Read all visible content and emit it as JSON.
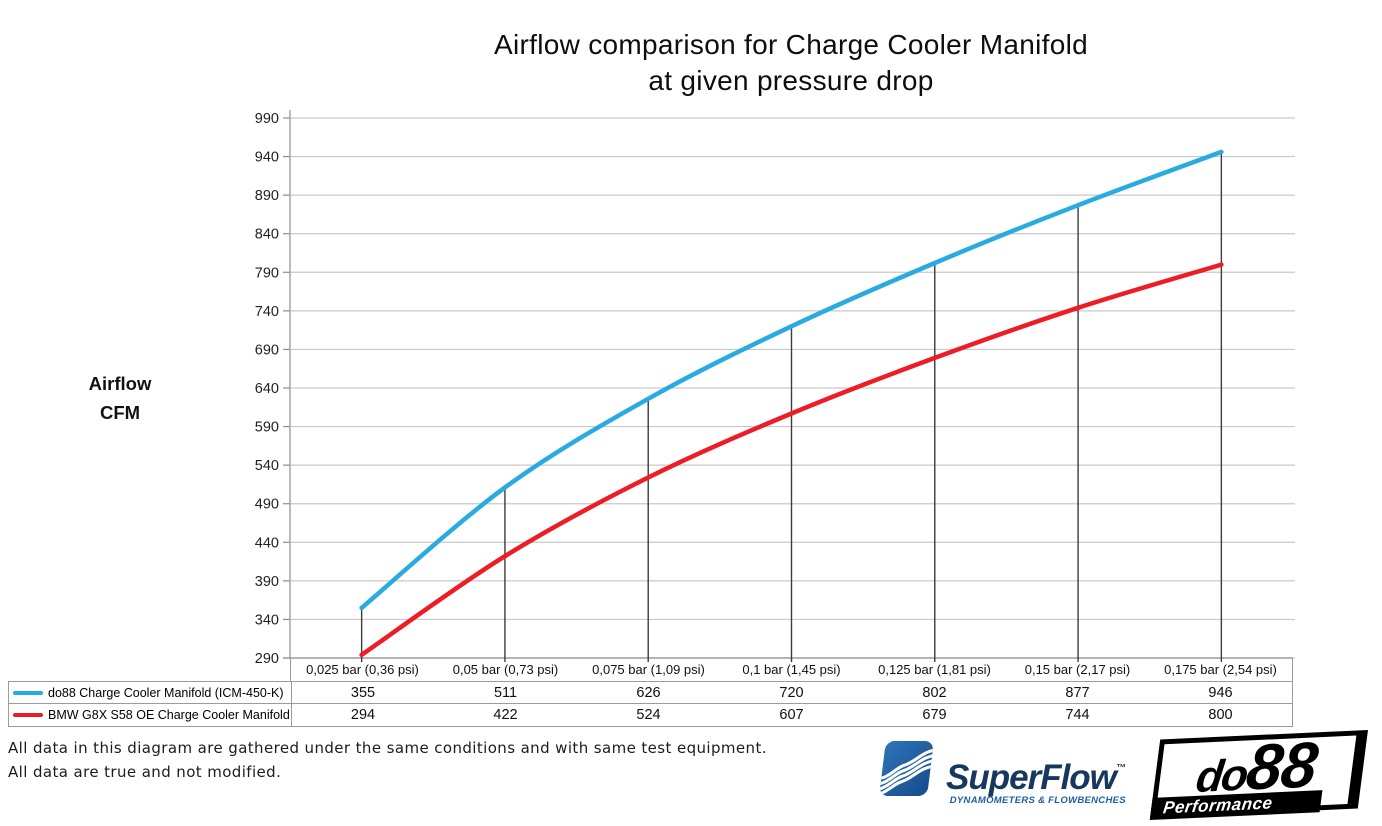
{
  "title": {
    "line1": "Airflow comparison for Charge Cooler Manifold",
    "line2": "at given pressure drop"
  },
  "chart_data": {
    "type": "line",
    "title": "Airflow comparison for Charge Cooler Manifold at given pressure drop",
    "categories": [
      "0,025 bar (0,36 psi)",
      "0,05 bar (0,73 psi)",
      "0,075 bar (1,09 psi)",
      "0,1 bar (1,45 psi)",
      "0,125 bar (1,81 psi)",
      "0,15 bar (2,17 psi)",
      "0,175 bar (2,54 psi)"
    ],
    "series": [
      {
        "name": "do88 Charge Cooler Manifold (ICM-450-K)",
        "color": "#29ABE2",
        "values": [
          355,
          511,
          626,
          720,
          802,
          877,
          946
        ]
      },
      {
        "name": "BMW G8X S58 OE Charge Cooler Manifold",
        "color": "#EE1C25",
        "values": [
          294,
          422,
          524,
          607,
          679,
          744,
          800
        ]
      }
    ],
    "xlabel": "",
    "ylabel": "Airflow CFM",
    "ylabel_lines": [
      "Airflow",
      "CFM"
    ],
    "yticks": [
      290,
      340,
      390,
      440,
      490,
      540,
      590,
      640,
      690,
      740,
      790,
      840,
      890,
      940,
      990
    ],
    "ylim": [
      290,
      1005
    ],
    "grid": true,
    "droplines": true,
    "legend_position": "table-left",
    "colors": {
      "grid": "#C9C9C9",
      "axis": "#8E8E8E",
      "dropline": "#3C3C3C",
      "tick_label": "#1F1F1F"
    }
  },
  "footer": {
    "line1": "All data in this diagram are gathered under the same conditions and with same test equipment.",
    "line2": "All data are true and not modified."
  },
  "logos": {
    "superflow": {
      "name": "SuperFlow",
      "trademark": "™",
      "tagline": "DYNAMOMETERS & FLOWBENCHES",
      "brand_blue": "#1E5C9F",
      "brand_navy": "#17375E"
    },
    "do88": {
      "name": "do88",
      "name_small": "do",
      "name_big": "88",
      "tagline": "Performance"
    }
  }
}
